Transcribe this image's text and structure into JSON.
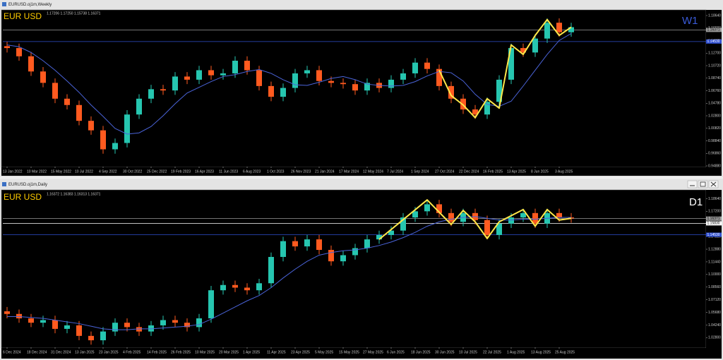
{
  "chart_data": [
    {
      "type": "candlestick",
      "title": "EURUSD.oj1m,Weekly",
      "symbol_label": "EUR USD",
      "timeframe_label": "W1",
      "ohlc_text": "1.17206 1.17250 1.15738 1.16371",
      "up_color": "#26c6b0",
      "down_color": "#ff5a1f",
      "categories": [
        "13 Jan 2022",
        null,
        "10 Mar 2022",
        null,
        "15 May 2022",
        null,
        "10 Jul 2022",
        null,
        "4 Sep 2022",
        null,
        "30 Oct 2022",
        null,
        "25 Dec 2022",
        null,
        "19 Feb 2023",
        null,
        "16 Apr 2023",
        null,
        "11 Jun 2023",
        null,
        "6 Aug 2023",
        null,
        "1 Oct 2023",
        null,
        "26 Nov 2023",
        null,
        "21 Jan 2024",
        null,
        "17 Mar 2024",
        null,
        "12 May 2024",
        null,
        "7 Jul 2024",
        null,
        "1 Sep 2024",
        null,
        "27 Oct 2024",
        null,
        "22 Dec 2024",
        null,
        "16 Feb 2025",
        null,
        "13 Apr 2025",
        null,
        "8 Jun 2025",
        null,
        "3 Aug 2025",
        null
      ],
      "open": [
        1.138,
        1.135,
        1.122,
        1.098,
        1.08,
        1.055,
        1.045,
        1.02,
        1.005,
        0.975,
        0.985,
        1.03,
        1.055,
        1.07,
        1.068,
        1.09,
        1.085,
        1.1,
        1.092,
        1.095,
        1.115,
        1.1,
        1.075,
        1.058,
        1.072,
        1.095,
        1.1,
        1.083,
        1.08,
        1.078,
        1.068,
        1.08,
        1.072,
        1.085,
        1.095,
        1.112,
        1.102,
        1.075,
        1.055,
        1.038,
        1.03,
        1.05,
        1.085,
        1.135,
        1.128,
        1.15,
        1.175,
        1.16
      ],
      "high": [
        1.145,
        1.142,
        1.129,
        1.105,
        1.087,
        1.062,
        1.052,
        1.027,
        1.012,
        0.992,
        1.037,
        1.062,
        1.077,
        1.077,
        1.097,
        1.097,
        1.107,
        1.107,
        1.102,
        1.122,
        1.122,
        1.107,
        1.082,
        1.079,
        1.102,
        1.107,
        1.107,
        1.09,
        1.087,
        1.085,
        1.087,
        1.087,
        1.092,
        1.102,
        1.119,
        1.119,
        1.109,
        1.082,
        1.062,
        1.045,
        1.057,
        1.092,
        1.142,
        1.142,
        1.157,
        1.182,
        1.182,
        1.175
      ],
      "low": [
        1.128,
        1.115,
        1.091,
        1.073,
        1.048,
        1.038,
        1.013,
        0.998,
        0.968,
        0.968,
        0.978,
        1.023,
        1.048,
        1.061,
        1.061,
        1.078,
        1.078,
        1.085,
        1.085,
        1.088,
        1.093,
        1.068,
        1.051,
        1.051,
        1.065,
        1.088,
        1.076,
        1.073,
        1.071,
        1.061,
        1.061,
        1.065,
        1.065,
        1.078,
        1.088,
        1.095,
        1.068,
        1.048,
        1.031,
        1.023,
        1.023,
        1.043,
        1.078,
        1.121,
        1.121,
        1.143,
        1.153,
        1.153
      ],
      "close": [
        1.135,
        1.122,
        1.098,
        1.08,
        1.055,
        1.045,
        1.02,
        1.005,
        0.975,
        0.985,
        1.03,
        1.055,
        1.07,
        1.068,
        1.09,
        1.085,
        1.1,
        1.092,
        1.095,
        1.115,
        1.1,
        1.075,
        1.058,
        1.072,
        1.095,
        1.1,
        1.083,
        1.08,
        1.078,
        1.068,
        1.08,
        1.072,
        1.085,
        1.095,
        1.112,
        1.102,
        1.075,
        1.055,
        1.038,
        1.03,
        1.05,
        1.085,
        1.135,
        1.128,
        1.15,
        1.175,
        1.16,
        1.168
      ],
      "ma": {
        "color": "#4a63d8",
        "values": [
          1.14,
          1.137,
          1.128,
          1.115,
          1.1,
          1.083,
          1.065,
          1.045,
          1.027,
          1.008,
          0.999,
          1.001,
          1.011,
          1.028,
          1.047,
          1.064,
          1.073,
          1.082,
          1.09,
          1.093,
          1.098,
          1.101,
          1.095,
          1.085,
          1.077,
          1.076,
          1.081,
          1.087,
          1.09,
          1.085,
          1.078,
          1.076,
          1.075,
          1.076,
          1.082,
          1.091,
          1.098,
          1.096,
          1.083,
          1.062,
          1.046,
          1.043,
          1.051,
          1.075,
          1.1,
          1.125,
          1.147,
          1.158
        ]
      },
      "zigzag": {
        "color": "#ffe84a",
        "x": [
          36,
          37,
          38,
          39,
          40,
          41,
          42,
          43,
          44,
          45,
          46,
          47
        ],
        "y": [
          1.1,
          1.06,
          1.045,
          1.025,
          1.055,
          1.04,
          1.14,
          1.125,
          1.155,
          1.18,
          1.155,
          1.168
        ]
      },
      "levels": [
        {
          "value": 1.1453,
          "label": "1.14530",
          "color": "#2f4fd0"
        },
        {
          "value": 1.16371,
          "label": "1.16371",
          "color": "#9a9a9a"
        }
      ],
      "ylim": [
        0.9477,
        1.1931
      ],
      "yticks": [
        {
          "value": 1.1864,
          "label": "1.18640"
        },
        {
          "value": 1.1666,
          "label": "1.16660"
        },
        {
          "value": 1.1468,
          "label": "1.14680"
        },
        {
          "value": 1.127,
          "label": "1.12700"
        },
        {
          "value": 1.1072,
          "label": "1.10720"
        },
        {
          "value": 1.0874,
          "label": "1.08740"
        },
        {
          "value": 1.0676,
          "label": "1.06760"
        },
        {
          "value": 1.0478,
          "label": "1.04780"
        },
        {
          "value": 1.028,
          "label": "1.02800"
        },
        {
          "value": 1.0082,
          "label": "1.00820"
        },
        {
          "value": 0.9884,
          "label": "0.98840"
        },
        {
          "value": 0.9686,
          "label": "0.96860"
        },
        {
          "value": 0.9488,
          "label": "0.94880"
        }
      ]
    },
    {
      "type": "candlestick",
      "title": "EURUSD.oj1m,Daily",
      "symbol_label": "EUR USD",
      "timeframe_label": "D1",
      "ohlc_text": "1.16372 1.16383 1.16313 1.16371",
      "up_color": "#26c6b0",
      "down_color": "#ff5a1f",
      "categories": [
        "6 Dec 2024",
        null,
        "18 Dec 2024",
        null,
        "31 Dec 2024",
        null,
        "13 Jan 2025",
        null,
        "23 Jan 2025",
        null,
        "4 Feb 2025",
        null,
        "14 Feb 2025",
        null,
        "26 Feb 2025",
        null,
        "10 Mar 2025",
        null,
        "20 Mar 2025",
        null,
        "1 Apr 2025",
        null,
        "11 Apr 2025",
        null,
        "23 Apr 2025",
        null,
        "5 May 2025",
        null,
        "15 May 2025",
        null,
        "27 May 2025",
        null,
        "6 Jun 2025",
        null,
        "18 Jun 2025",
        null,
        "30 Jun 2025",
        null,
        "10 Jul 2025",
        null,
        "22 Jul 2025",
        null,
        "1 Aug 2025",
        null,
        "13 Aug 2025",
        null,
        "25 Aug 2025",
        null
      ],
      "open": [
        1.058,
        1.055,
        1.05,
        1.045,
        1.048,
        1.038,
        1.042,
        1.03,
        1.025,
        1.035,
        1.045,
        1.04,
        1.035,
        1.042,
        1.048,
        1.045,
        1.04,
        1.05,
        1.082,
        1.088,
        1.085,
        1.082,
        1.09,
        1.12,
        1.138,
        1.132,
        1.14,
        1.128,
        1.115,
        1.122,
        1.13,
        1.14,
        1.145,
        1.15,
        1.165,
        1.172,
        1.18,
        1.17,
        1.16,
        1.17,
        1.162,
        1.145,
        1.158,
        1.165,
        1.17,
        1.158,
        1.17,
        1.165
      ],
      "high": [
        1.063,
        1.06,
        1.055,
        1.053,
        1.053,
        1.047,
        1.047,
        1.035,
        1.04,
        1.05,
        1.05,
        1.045,
        1.047,
        1.053,
        1.053,
        1.05,
        1.055,
        1.087,
        1.093,
        1.093,
        1.09,
        1.095,
        1.125,
        1.143,
        1.143,
        1.145,
        1.145,
        1.133,
        1.127,
        1.135,
        1.145,
        1.15,
        1.155,
        1.17,
        1.177,
        1.185,
        1.185,
        1.175,
        1.175,
        1.175,
        1.167,
        1.163,
        1.17,
        1.175,
        1.175,
        1.175,
        1.175,
        1.17
      ],
      "low": [
        1.05,
        1.045,
        1.04,
        1.04,
        1.033,
        1.033,
        1.025,
        1.02,
        1.02,
        1.03,
        1.035,
        1.03,
        1.03,
        1.037,
        1.04,
        1.035,
        1.035,
        1.045,
        1.077,
        1.08,
        1.077,
        1.077,
        1.085,
        1.115,
        1.127,
        1.127,
        1.123,
        1.11,
        1.11,
        1.117,
        1.125,
        1.135,
        1.14,
        1.145,
        1.16,
        1.167,
        1.165,
        1.155,
        1.155,
        1.157,
        1.14,
        1.14,
        1.153,
        1.16,
        1.153,
        1.153,
        1.16,
        1.159
      ],
      "close": [
        1.055,
        1.05,
        1.045,
        1.048,
        1.038,
        1.042,
        1.03,
        1.025,
        1.035,
        1.045,
        1.04,
        1.035,
        1.042,
        1.048,
        1.045,
        1.04,
        1.05,
        1.082,
        1.088,
        1.085,
        1.082,
        1.09,
        1.12,
        1.138,
        1.132,
        1.14,
        1.128,
        1.115,
        1.122,
        1.13,
        1.14,
        1.145,
        1.15,
        1.165,
        1.172,
        1.18,
        1.17,
        1.16,
        1.17,
        1.162,
        1.145,
        1.158,
        1.165,
        1.17,
        1.158,
        1.17,
        1.165,
        1.164
      ],
      "ma": {
        "color": "#4a63d8",
        "values": [
          1.052,
          1.052,
          1.051,
          1.05,
          1.048,
          1.046,
          1.044,
          1.041,
          1.038,
          1.037,
          1.037,
          1.038,
          1.038,
          1.039,
          1.04,
          1.041,
          1.043,
          1.049,
          1.056,
          1.063,
          1.07,
          1.076,
          1.085,
          1.096,
          1.106,
          1.115,
          1.122,
          1.125,
          1.127,
          1.128,
          1.13,
          1.133,
          1.137,
          1.142,
          1.148,
          1.155,
          1.16,
          1.163,
          1.165,
          1.166,
          1.164,
          1.162,
          1.162,
          1.163,
          1.163,
          1.164,
          1.165,
          1.165
        ]
      },
      "zigzag": {
        "color": "#ffe84a",
        "x": [
          31,
          35,
          37,
          38,
          39,
          40,
          41,
          43,
          44,
          45,
          46,
          47
        ],
        "y": [
          1.14,
          1.185,
          1.157,
          1.173,
          1.16,
          1.141,
          1.16,
          1.174,
          1.155,
          1.174,
          1.162,
          1.164
        ]
      },
      "levels": [
        {
          "value": 1.1453,
          "label": "1.14530",
          "color": "#2f4fd0"
        },
        {
          "value": 1.1583,
          "label": "1.15830",
          "color": "#ffffff"
        },
        {
          "value": 1.16371,
          "label": "1.16371",
          "color": "#9a9a9a"
        }
      ],
      "ylim": [
        1.017,
        1.194
      ],
      "yticks": [
        {
          "value": 1.1864,
          "label": "1.18640"
        },
        {
          "value": 1.172,
          "label": "1.17200"
        },
        {
          "value": 1.1576,
          "label": "1.15760"
        },
        {
          "value": 1.1432,
          "label": "1.14320"
        },
        {
          "value": 1.1288,
          "label": "1.12880"
        },
        {
          "value": 1.1144,
          "label": "1.11440"
        },
        {
          "value": 1.1,
          "label": "1.10000"
        },
        {
          "value": 1.0856,
          "label": "1.08560"
        },
        {
          "value": 1.0712,
          "label": "1.07120"
        },
        {
          "value": 1.0568,
          "label": "1.05680"
        },
        {
          "value": 1.0424,
          "label": "1.04240"
        },
        {
          "value": 1.028,
          "label": "1.02800"
        }
      ]
    }
  ]
}
